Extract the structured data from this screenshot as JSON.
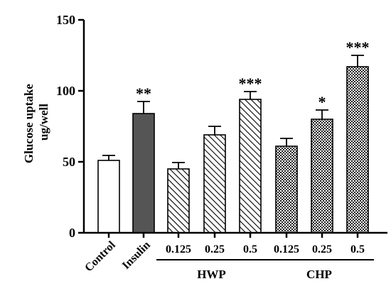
{
  "chart_data": {
    "type": "bar",
    "ylabel": [
      "Glucose uptake",
      "ug/well"
    ],
    "ylim": [
      0,
      150
    ],
    "yticks": [
      "0",
      "50",
      "100",
      "150"
    ],
    "ytick_values": [
      0,
      50,
      100,
      150
    ],
    "categories": [
      "Control",
      "Insulin",
      "0.125",
      "0.25",
      "0.5",
      "0.125",
      "0.25",
      "0.5"
    ],
    "values": [
      51,
      84,
      45,
      69,
      94,
      61,
      80,
      117
    ],
    "errors": [
      3.5,
      8.5,
      4.5,
      6,
      5.5,
      5.5,
      6.5,
      8
    ],
    "significance": [
      "",
      "**",
      "",
      "",
      "***",
      "",
      "*",
      "***"
    ],
    "fill": [
      "white",
      "dark",
      "hatch",
      "hatch",
      "hatch",
      "checker",
      "checker",
      "checker"
    ],
    "groups": [
      {
        "label": "HWP",
        "start": 2,
        "end": 4
      },
      {
        "label": "CHP",
        "start": 5,
        "end": 7
      }
    ],
    "colors": {
      "dark": "#555555",
      "outline": "#000000"
    }
  }
}
